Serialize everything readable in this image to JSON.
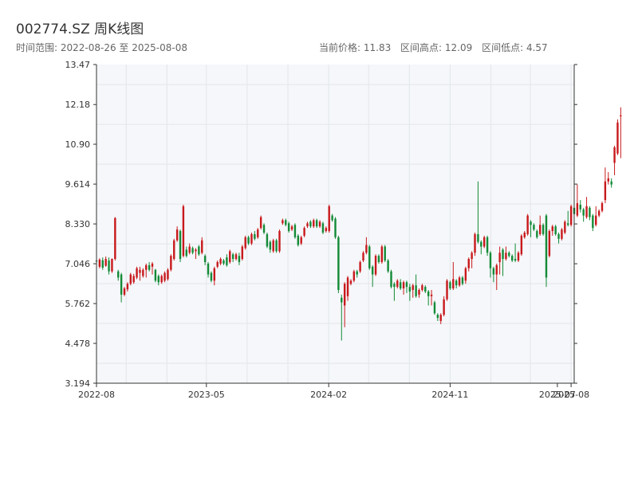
{
  "header": {
    "title": "002774.SZ 周K线图",
    "subtitle": "时间范围: 2022-08-26 至 2025-08-08",
    "current_price": "当前价格: 11.83",
    "range_high": "区间高点: 12.09",
    "range_low": "区间低点: 4.57"
  },
  "colors": {
    "up": "#c8191c",
    "down": "#138a36",
    "plot_bg": "#f5f7fa",
    "grid": "#e3e6ea",
    "axis": "#333333"
  },
  "chart_data": {
    "type": "candlestick",
    "title": "002774.SZ 周K线图",
    "ylim": [
      3.194,
      13.47
    ],
    "y_ticks": [
      "3.194",
      "4.478",
      "5.762",
      "7.046",
      "8.330",
      "9.614",
      "10.90",
      "12.18",
      "13.47"
    ],
    "x_ticks": [
      "2022-08",
      "2023-05",
      "2024-02",
      "2024-11",
      "2025-07",
      "2025-08"
    ],
    "xlim": [
      "2022-08-26",
      "2025-08-08"
    ],
    "grid": true,
    "start_date": "2022-08-26",
    "week_step_days": 7,
    "ohlc": [
      [
        7.15,
        7.12,
        7.3,
        6.82
      ],
      [
        6.95,
        7.18,
        7.22,
        6.9
      ],
      [
        7.16,
        6.92,
        7.25,
        6.85
      ],
      [
        6.98,
        7.2,
        7.28,
        6.95
      ],
      [
        7.15,
        6.8,
        7.25,
        6.7
      ],
      [
        6.8,
        7.2,
        7.22,
        6.75
      ],
      [
        7.2,
        8.52,
        8.55,
        7.15
      ],
      [
        6.8,
        6.6,
        6.85,
        6.5
      ],
      [
        6.7,
        6.05,
        6.75,
        5.8
      ],
      [
        6.05,
        6.25,
        6.3,
        6.0
      ],
      [
        6.22,
        6.4,
        6.45,
        6.15
      ],
      [
        6.4,
        6.7,
        6.75,
        6.35
      ],
      [
        6.45,
        6.65,
        6.72,
        6.4
      ],
      [
        6.6,
        6.9,
        6.95,
        6.55
      ],
      [
        6.75,
        6.85,
        6.95,
        6.5
      ],
      [
        6.65,
        6.85,
        6.9,
        6.6
      ],
      [
        6.85,
        7.0,
        7.05,
        6.6
      ],
      [
        7.0,
        6.85,
        7.1,
        6.8
      ],
      [
        6.95,
        7.05,
        7.1,
        6.7
      ],
      [
        6.85,
        6.5,
        6.88,
        6.45
      ],
      [
        6.65,
        6.45,
        6.7,
        6.35
      ],
      [
        6.45,
        6.65,
        6.7,
        6.4
      ],
      [
        6.5,
        6.75,
        6.8,
        6.45
      ],
      [
        6.55,
        6.85,
        6.9,
        6.5
      ],
      [
        6.85,
        7.3,
        7.35,
        6.8
      ],
      [
        7.2,
        7.8,
        7.85,
        7.15
      ],
      [
        7.8,
        8.15,
        8.25,
        7.75
      ],
      [
        8.1,
        7.2,
        8.15,
        7.1
      ],
      [
        7.3,
        8.9,
        8.95,
        7.25
      ],
      [
        7.5,
        7.3,
        7.6,
        7.25
      ],
      [
        7.4,
        7.6,
        7.7,
        7.35
      ],
      [
        7.55,
        7.4,
        7.6,
        7.35
      ],
      [
        7.45,
        7.5,
        7.55,
        7.2
      ],
      [
        7.6,
        7.35,
        7.65,
        7.3
      ],
      [
        7.4,
        7.8,
        7.9,
        7.35
      ],
      [
        7.3,
        7.1,
        7.35,
        7.0
      ],
      [
        7.05,
        6.7,
        7.1,
        6.6
      ],
      [
        6.75,
        6.5,
        6.8,
        6.45
      ],
      [
        6.5,
        6.9,
        6.95,
        6.35
      ],
      [
        6.95,
        7.1,
        7.15,
        6.9
      ],
      [
        7.05,
        7.2,
        7.25,
        7.0
      ],
      [
        7.15,
        7.05,
        7.2,
        7.0
      ],
      [
        7.25,
        7.0,
        7.35,
        6.95
      ],
      [
        7.1,
        7.45,
        7.5,
        7.05
      ],
      [
        7.35,
        7.2,
        7.4,
        7.1
      ],
      [
        7.2,
        7.35,
        7.4,
        7.15
      ],
      [
        7.3,
        7.1,
        7.4,
        7.0
      ],
      [
        7.2,
        7.6,
        7.65,
        7.15
      ],
      [
        7.55,
        7.9,
        7.95,
        7.5
      ],
      [
        7.9,
        7.7,
        7.95,
        7.65
      ],
      [
        7.7,
        8.0,
        8.05,
        7.65
      ],
      [
        8.0,
        7.85,
        8.1,
        7.8
      ],
      [
        7.9,
        8.15,
        8.2,
        7.85
      ],
      [
        8.2,
        8.55,
        8.6,
        8.15
      ],
      [
        8.3,
        8.05,
        8.35,
        8.0
      ],
      [
        8.0,
        7.6,
        8.05,
        7.55
      ],
      [
        7.75,
        7.5,
        7.8,
        7.4
      ],
      [
        7.45,
        7.8,
        7.85,
        7.4
      ],
      [
        7.8,
        7.45,
        7.85,
        7.4
      ],
      [
        7.45,
        8.1,
        8.15,
        7.4
      ],
      [
        8.35,
        8.45,
        8.5,
        8.3
      ],
      [
        8.45,
        8.3,
        8.5,
        8.25
      ],
      [
        8.35,
        8.1,
        8.4,
        8.05
      ],
      [
        8.15,
        8.25,
        8.3,
        8.1
      ],
      [
        8.3,
        7.9,
        8.35,
        7.85
      ],
      [
        7.95,
        7.65,
        8.0,
        7.6
      ],
      [
        7.7,
        7.9,
        7.95,
        7.65
      ],
      [
        7.95,
        8.2,
        8.25,
        7.9
      ],
      [
        8.25,
        8.35,
        8.4,
        8.2
      ],
      [
        8.4,
        8.25,
        8.45,
        8.2
      ],
      [
        8.25,
        8.45,
        8.5,
        8.2
      ],
      [
        8.45,
        8.25,
        8.5,
        8.2
      ],
      [
        8.25,
        8.4,
        8.45,
        8.2
      ],
      [
        8.35,
        8.05,
        8.4,
        8.0
      ],
      [
        8.1,
        8.2,
        8.25,
        8.05
      ],
      [
        8.1,
        8.9,
        8.95,
        8.05
      ],
      [
        8.6,
        8.45,
        8.65,
        8.4
      ],
      [
        8.5,
        7.9,
        8.55,
        7.85
      ],
      [
        7.9,
        6.2,
        7.95,
        6.1
      ],
      [
        5.95,
        5.8,
        6.05,
        4.57
      ],
      [
        5.7,
        6.4,
        6.45,
        5.0
      ],
      [
        6.0,
        6.6,
        6.65,
        5.85
      ],
      [
        6.4,
        6.5,
        6.55,
        6.35
      ],
      [
        6.5,
        6.8,
        6.85,
        6.45
      ],
      [
        6.8,
        6.7,
        6.85,
        6.6
      ],
      [
        6.8,
        7.1,
        7.15,
        6.75
      ],
      [
        7.15,
        7.4,
        7.45,
        7.1
      ],
      [
        7.4,
        7.65,
        7.9,
        7.35
      ],
      [
        7.6,
        6.9,
        7.65,
        6.85
      ],
      [
        6.95,
        6.7,
        7.0,
        6.3
      ],
      [
        6.7,
        7.3,
        7.35,
        6.65
      ],
      [
        7.3,
        7.1,
        7.35,
        7.05
      ],
      [
        7.1,
        7.6,
        7.65,
        7.05
      ],
      [
        7.6,
        7.15,
        7.65,
        7.1
      ],
      [
        7.15,
        6.8,
        7.2,
        6.75
      ],
      [
        6.8,
        6.3,
        6.85,
        6.25
      ],
      [
        6.4,
        6.3,
        6.45,
        5.85
      ],
      [
        6.3,
        6.5,
        6.55,
        6.25
      ],
      [
        6.45,
        6.25,
        6.55,
        6.2
      ],
      [
        6.25,
        6.45,
        6.5,
        6.05
      ],
      [
        6.45,
        6.3,
        6.5,
        6.1
      ],
      [
        6.3,
        6.15,
        6.4,
        5.85
      ],
      [
        6.2,
        6.35,
        6.4,
        5.95
      ],
      [
        6.35,
        6.0,
        6.7,
        5.95
      ],
      [
        6.05,
        6.2,
        6.25,
        5.95
      ],
      [
        6.2,
        6.35,
        6.4,
        6.15
      ],
      [
        6.3,
        6.15,
        6.35,
        6.1
      ],
      [
        6.15,
        6.0,
        6.2,
        5.7
      ],
      [
        6.0,
        6.05,
        6.2,
        5.7
      ],
      [
        5.8,
        5.45,
        5.85,
        5.4
      ],
      [
        5.4,
        5.3,
        5.45,
        5.2
      ],
      [
        5.2,
        5.4,
        5.45,
        5.1
      ],
      [
        5.4,
        5.9,
        6.0,
        5.35
      ],
      [
        5.9,
        6.5,
        6.55,
        5.85
      ],
      [
        6.45,
        6.25,
        6.5,
        6.2
      ],
      [
        6.25,
        6.55,
        7.1,
        6.2
      ],
      [
        6.5,
        6.35,
        6.55,
        6.25
      ],
      [
        6.35,
        6.6,
        6.65,
        6.3
      ],
      [
        6.6,
        6.4,
        6.65,
        6.35
      ],
      [
        6.5,
        6.9,
        6.95,
        6.4
      ],
      [
        6.9,
        7.2,
        7.25,
        6.8
      ],
      [
        7.2,
        7.4,
        7.45,
        6.9
      ],
      [
        7.4,
        8.0,
        8.05,
        7.3
      ],
      [
        8.0,
        7.75,
        9.7,
        7.7
      ],
      [
        7.75,
        7.6,
        7.8,
        7.35
      ],
      [
        7.6,
        7.9,
        7.95,
        7.55
      ],
      [
        7.9,
        7.4,
        7.95,
        7.3
      ],
      [
        7.4,
        6.9,
        7.45,
        6.6
      ],
      [
        6.9,
        6.7,
        6.95,
        6.45
      ],
      [
        6.7,
        7.0,
        7.05,
        6.2
      ],
      [
        7.1,
        7.4,
        7.6,
        6.7
      ],
      [
        7.5,
        7.2,
        7.55,
        6.65
      ],
      [
        7.2,
        7.4,
        7.6,
        7.15
      ],
      [
        7.4,
        7.3,
        7.45,
        7.25
      ],
      [
        7.3,
        7.15,
        7.35,
        7.1
      ],
      [
        7.2,
        7.15,
        7.7,
        7.1
      ],
      [
        7.15,
        7.4,
        7.45,
        7.1
      ],
      [
        7.35,
        7.95,
        8.0,
        7.3
      ],
      [
        7.9,
        8.05,
        8.1,
        7.85
      ],
      [
        8.0,
        8.6,
        8.65,
        7.95
      ],
      [
        8.4,
        8.3,
        8.45,
        7.9
      ],
      [
        8.3,
        8.15,
        8.35,
        8.1
      ],
      [
        8.1,
        7.9,
        8.15,
        7.85
      ],
      [
        8.0,
        8.3,
        8.6,
        7.95
      ],
      [
        8.3,
        8.0,
        8.35,
        7.95
      ],
      [
        8.6,
        6.6,
        8.65,
        6.3
      ],
      [
        7.3,
        8.1,
        8.15,
        7.25
      ],
      [
        8.1,
        8.25,
        8.3,
        7.95
      ],
      [
        8.25,
        8.0,
        8.3,
        7.95
      ],
      [
        8.0,
        7.85,
        8.05,
        7.7
      ],
      [
        7.85,
        8.15,
        8.2,
        7.8
      ],
      [
        8.05,
        8.4,
        8.45,
        8.0
      ],
      [
        8.35,
        8.3,
        8.75,
        8.25
      ],
      [
        8.3,
        8.9,
        8.95,
        8.25
      ],
      [
        8.85,
        8.65,
        8.9,
        8.55
      ],
      [
        8.6,
        9.0,
        9.6,
        8.55
      ],
      [
        8.95,
        8.8,
        9.1,
        8.7
      ],
      [
        8.8,
        8.6,
        8.85,
        8.4
      ],
      [
        8.55,
        8.9,
        9.2,
        8.5
      ],
      [
        8.85,
        8.55,
        8.9,
        8.45
      ],
      [
        8.6,
        8.2,
        8.65,
        8.1
      ],
      [
        8.3,
        8.6,
        8.9,
        8.25
      ],
      [
        8.6,
        8.75,
        8.8,
        8.55
      ],
      [
        8.75,
        9.0,
        9.05,
        8.7
      ],
      [
        9.1,
        9.7,
        10.15,
        9.0
      ],
      [
        9.7,
        9.8,
        10.0,
        9.6
      ],
      [
        9.7,
        9.6,
        9.8,
        9.5
      ],
      [
        10.3,
        10.8,
        10.85,
        9.9
      ],
      [
        10.6,
        11.6,
        11.7,
        10.55
      ],
      [
        11.8,
        11.83,
        12.09,
        10.45
      ]
    ]
  }
}
